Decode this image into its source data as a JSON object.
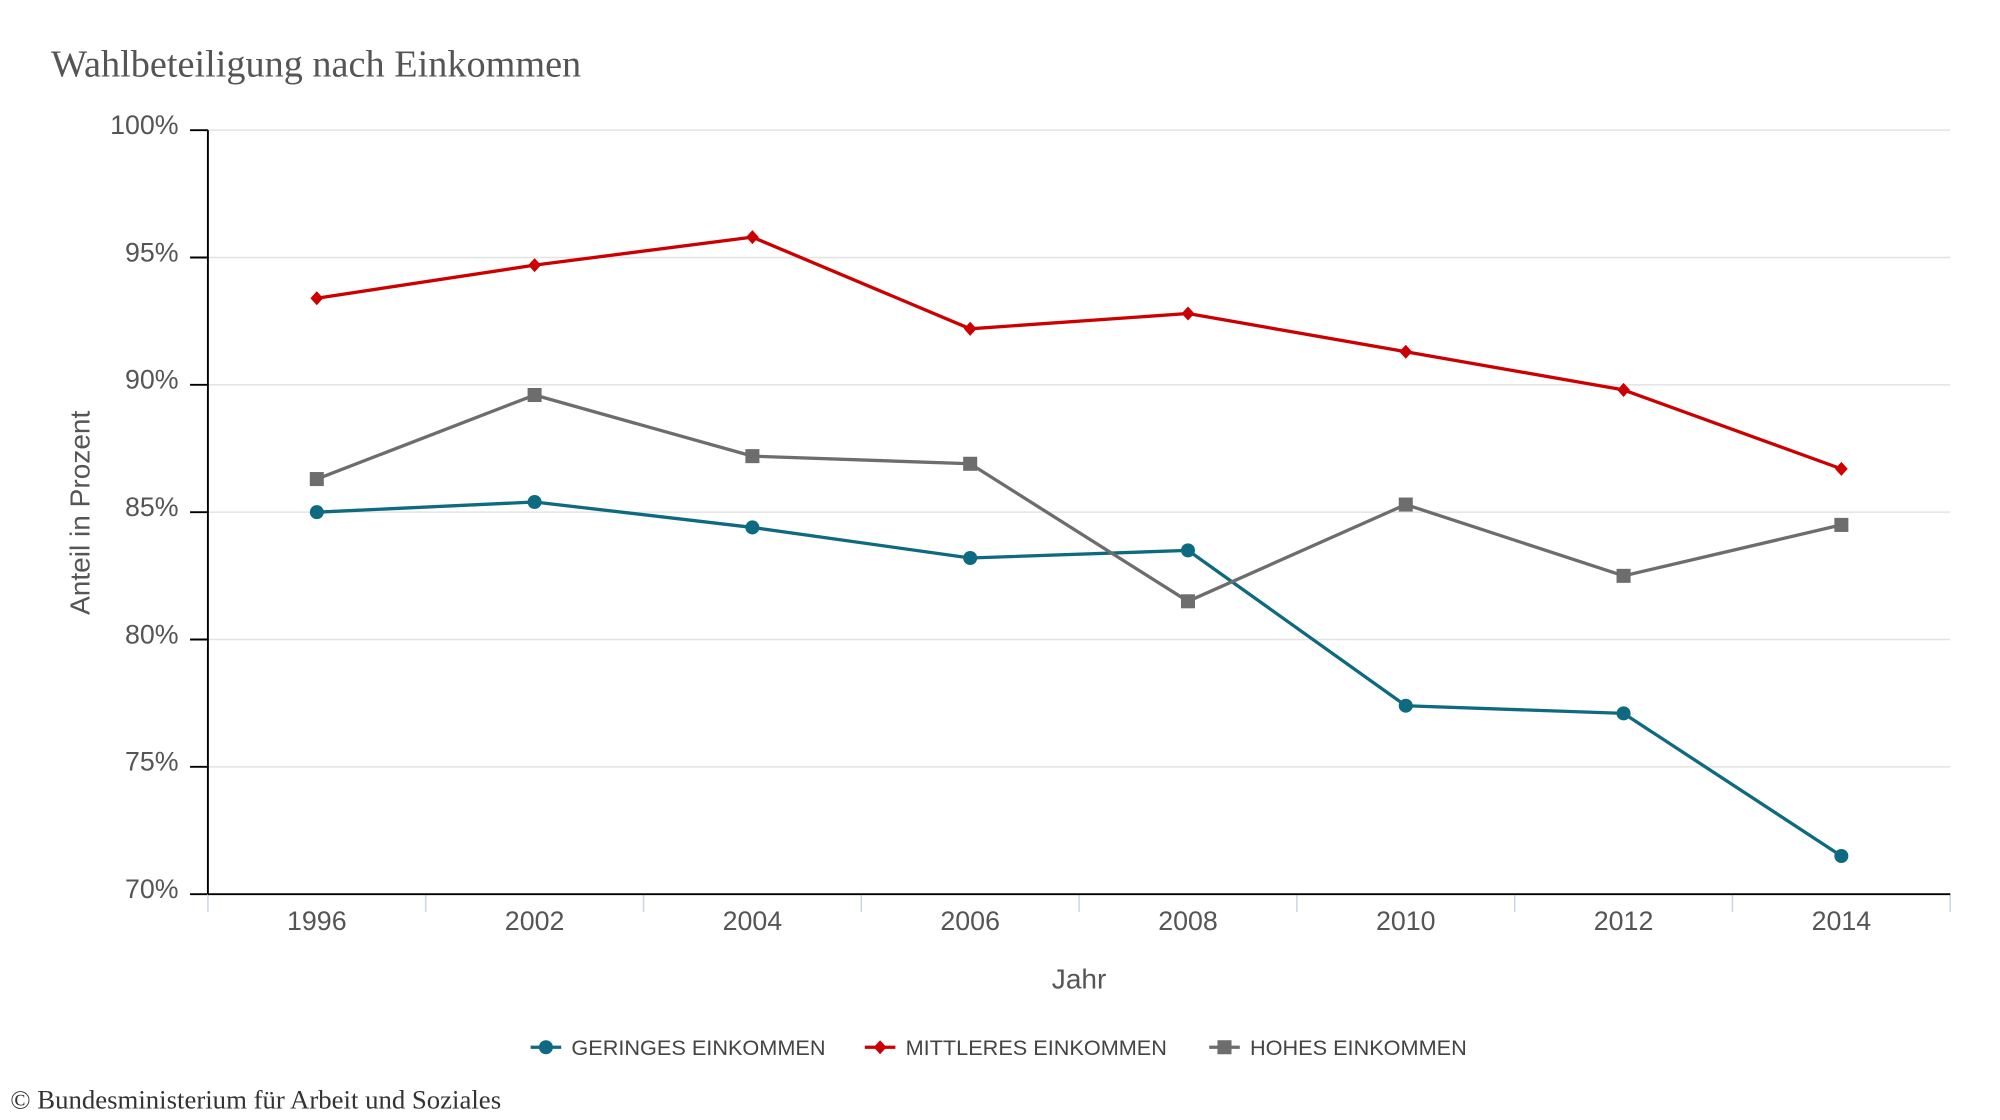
{
  "chart_data": {
    "type": "line",
    "title": "Wahlbeteiligung nach Einkommen",
    "xlabel": "Jahr",
    "ylabel": "Anteil in Prozent",
    "categories": [
      "1996",
      "2002",
      "2004",
      "2006",
      "2008",
      "2010",
      "2012",
      "2014"
    ],
    "ylim": [
      70,
      100
    ],
    "yticks": [
      "70%",
      "75%",
      "80%",
      "85%",
      "90%",
      "95%",
      "100%"
    ],
    "grid": true,
    "legend_position": "bottom",
    "series": [
      {
        "name": "GERINGES EINKOMMEN",
        "color": "#0e6a80",
        "marker": "circle",
        "values": [
          85.0,
          85.4,
          84.4,
          83.2,
          83.5,
          77.4,
          77.1,
          71.5
        ]
      },
      {
        "name": "MITTLERES EINKOMMEN",
        "color": "#cc0000",
        "marker": "diamond",
        "values": [
          93.4,
          94.7,
          95.8,
          92.2,
          92.8,
          91.3,
          89.8,
          86.7
        ]
      },
      {
        "name": "HOHES EINKOMMEN",
        "color": "#6d6d6d",
        "marker": "square",
        "values": [
          86.3,
          89.6,
          87.2,
          86.9,
          81.5,
          85.3,
          82.5,
          84.5
        ]
      }
    ]
  },
  "credit": "© Bundesministerium für Arbeit und Soziales"
}
